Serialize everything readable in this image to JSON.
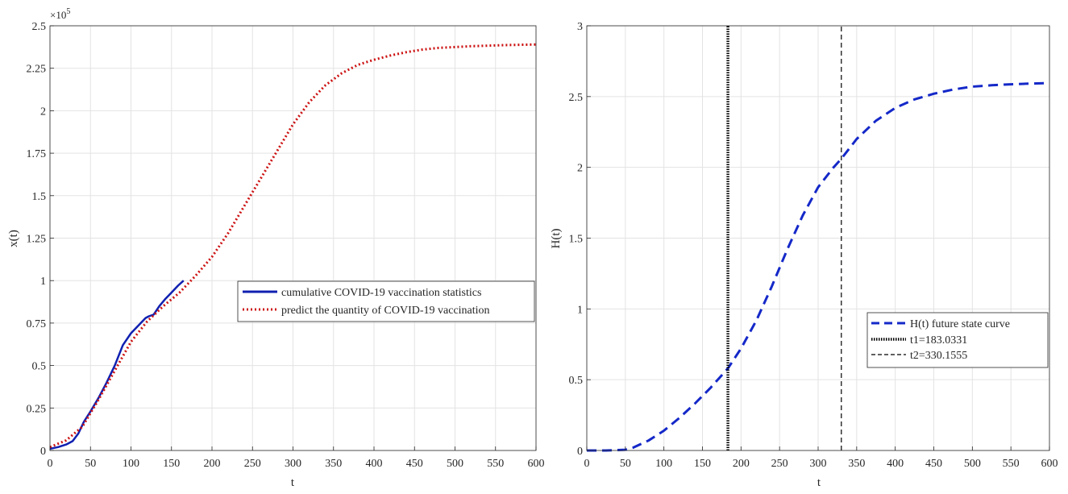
{
  "chart_data": [
    {
      "type": "line",
      "xlabel": "t",
      "ylabel": "x(t)",
      "y_exponent_label": "×10",
      "y_exponent_power": "5",
      "xlim": [
        0,
        600
      ],
      "ylim": [
        0,
        2.5
      ],
      "xticks": [
        0,
        50,
        100,
        150,
        200,
        250,
        300,
        350,
        400,
        450,
        500,
        550,
        600
      ],
      "yticks": [
        0,
        0.25,
        0.5,
        0.75,
        1,
        1.25,
        1.5,
        1.75,
        2,
        2.25,
        2.5
      ],
      "ytick_labels": [
        "0",
        "0.25",
        "0.5",
        "0.75",
        "1",
        "1.25",
        "1.5",
        "1.75",
        "2",
        "2.25",
        "2.5"
      ],
      "grid": true,
      "legend_position": "right-middle",
      "series": [
        {
          "name": "cumulative COVID-19 vaccination statistics",
          "color": "#1020b0",
          "style": "solid",
          "x": [
            0,
            10,
            20,
            28,
            35,
            42,
            50,
            60,
            70,
            80,
            90,
            100,
            110,
            118,
            122,
            128,
            135,
            142,
            150,
            158,
            165
          ],
          "y": [
            0.01,
            0.02,
            0.035,
            0.055,
            0.1,
            0.17,
            0.23,
            0.31,
            0.4,
            0.5,
            0.62,
            0.69,
            0.74,
            0.78,
            0.79,
            0.8,
            0.85,
            0.89,
            0.93,
            0.97,
            1.0
          ]
        },
        {
          "name": "predict the quantity of COVID-19 vaccination",
          "color": "#cc1111",
          "style": "dotted",
          "x": [
            0,
            20,
            40,
            60,
            80,
            100,
            120,
            140,
            160,
            180,
            200,
            220,
            240,
            260,
            280,
            300,
            320,
            340,
            360,
            380,
            400,
            420,
            440,
            460,
            480,
            500,
            520,
            540,
            560,
            580,
            600
          ],
          "y": [
            0.02,
            0.06,
            0.14,
            0.3,
            0.47,
            0.64,
            0.76,
            0.85,
            0.93,
            1.03,
            1.14,
            1.28,
            1.44,
            1.6,
            1.76,
            1.92,
            2.05,
            2.15,
            2.22,
            2.27,
            2.3,
            2.325,
            2.345,
            2.36,
            2.37,
            2.375,
            2.38,
            2.383,
            2.386,
            2.388,
            2.39
          ]
        }
      ]
    },
    {
      "type": "line",
      "xlabel": "t",
      "ylabel": "H(t)",
      "xlim": [
        0,
        600
      ],
      "ylim": [
        0,
        3
      ],
      "xticks": [
        0,
        50,
        100,
        150,
        200,
        250,
        300,
        350,
        400,
        450,
        500,
        550,
        600
      ],
      "yticks": [
        0,
        0.5,
        1,
        1.5,
        2,
        2.5,
        3
      ],
      "ytick_labels": [
        "0",
        "0.5",
        "1",
        "1.5",
        "2",
        "2.5",
        "3"
      ],
      "grid": true,
      "legend_position": "bottom-right",
      "series": [
        {
          "name": "H(t) future state curve",
          "color": "#1428c8",
          "style": "dashed",
          "x": [
            0,
            25,
            50,
            60,
            80,
            100,
            120,
            140,
            160,
            183,
            200,
            220,
            240,
            260,
            280,
            300,
            320,
            330,
            350,
            375,
            400,
            425,
            450,
            475,
            500,
            525,
            550,
            575,
            600
          ],
          "y": [
            0,
            0,
            0.005,
            0.02,
            0.07,
            0.14,
            0.23,
            0.33,
            0.44,
            0.58,
            0.72,
            0.92,
            1.16,
            1.42,
            1.66,
            1.86,
            2.0,
            2.06,
            2.2,
            2.33,
            2.42,
            2.48,
            2.52,
            2.55,
            2.57,
            2.58,
            2.587,
            2.592,
            2.595
          ]
        },
        {
          "name": "t1=183.0331",
          "color": "#000000",
          "style": "dotted-thick",
          "x": [
            183.0331,
            183.0331
          ],
          "y": [
            0,
            3
          ]
        },
        {
          "name": "t2=330.1555",
          "color": "#000000",
          "style": "dashed-thin",
          "x": [
            330.1555,
            330.1555
          ],
          "y": [
            0,
            3
          ]
        }
      ]
    }
  ]
}
